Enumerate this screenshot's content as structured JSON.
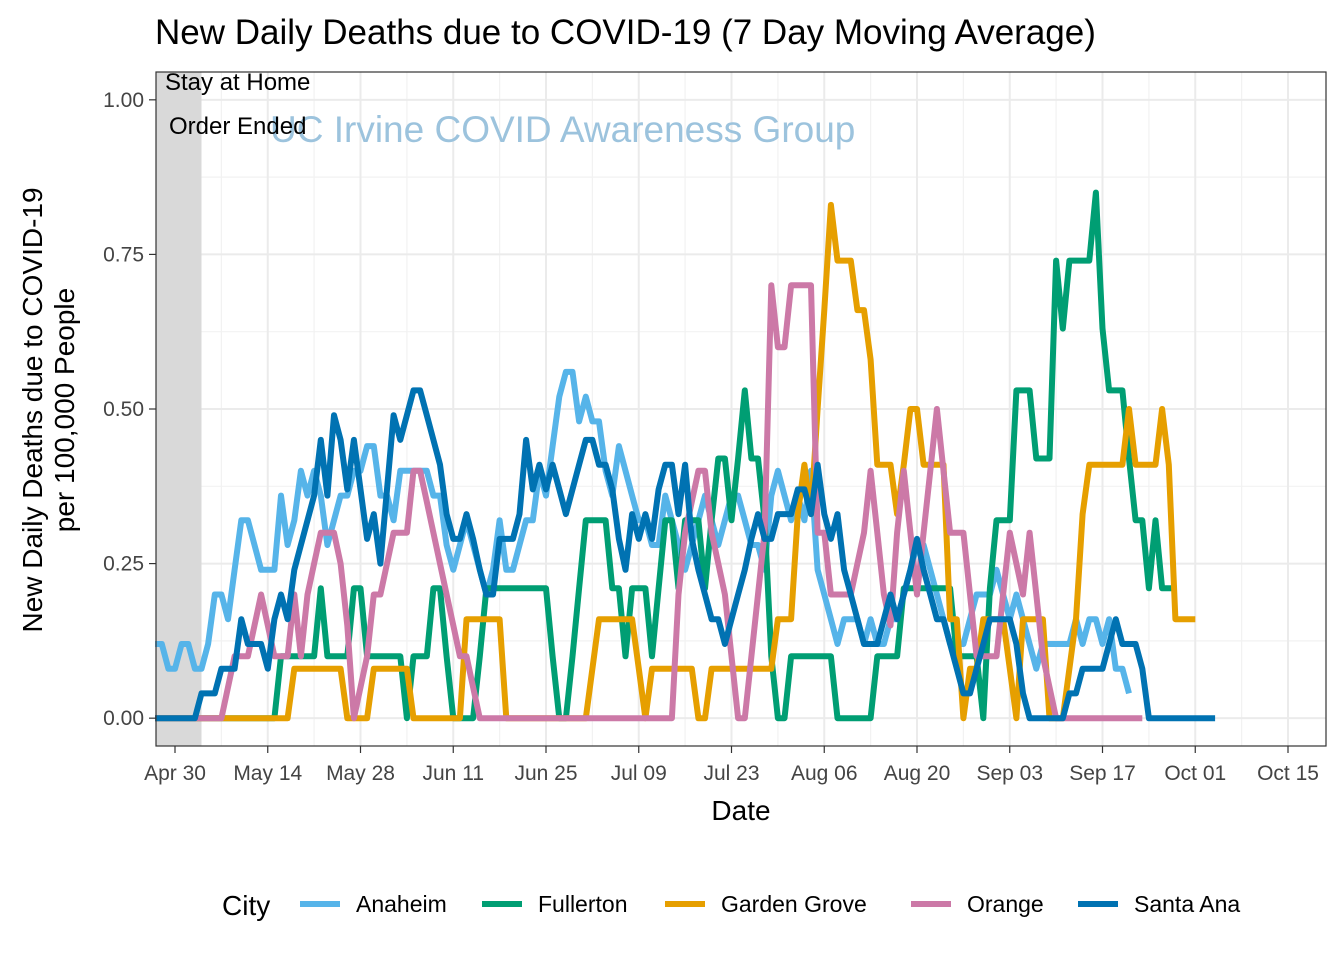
{
  "chart_data": {
    "type": "line",
    "title": "New Daily Deaths due to COVID-19  (7 Day Moving Average)",
    "xlabel": "Date",
    "ylabel_lines": [
      "New Daily Deaths due to COVID-19",
      "per 100,000 People"
    ],
    "x_tick_labels": [
      "Apr 30",
      "May 14",
      "May 28",
      "Jun 11",
      "Jun 25",
      "Jul 09",
      "Jul 23",
      "Aug 06",
      "Aug 20",
      "Sep 03",
      "Sep 17",
      "Oct 01",
      "Oct 15"
    ],
    "y_tick_labels": [
      "0.00",
      "0.25",
      "0.50",
      "0.75",
      "1.00"
    ],
    "ylim": [
      -0.045,
      1.045
    ],
    "grid": true,
    "legend_position": "bottom",
    "legend_title": "City",
    "start_date": "Apr 27",
    "shaded_region": {
      "from": "Apr 27",
      "to": "May 4"
    },
    "annotations": {
      "shade_label_line1": "Stay at Home",
      "shade_label_line2": "Order Ended",
      "watermark": "UC Irvine COVID Awareness Group"
    },
    "series": [
      {
        "name": "Anaheim",
        "color": "#56B4E9",
        "values": [
          0.12,
          0.12,
          0.08,
          0.08,
          0.12,
          0.12,
          0.08,
          0.08,
          0.12,
          0.2,
          0.2,
          0.16,
          0.24,
          0.32,
          0.32,
          0.28,
          0.24,
          0.24,
          0.24,
          0.36,
          0.28,
          0.32,
          0.4,
          0.36,
          0.4,
          0.36,
          0.28,
          0.32,
          0.36,
          0.36,
          0.4,
          0.4,
          0.44,
          0.44,
          0.36,
          0.36,
          0.32,
          0.4,
          0.4,
          0.4,
          0.4,
          0.4,
          0.36,
          0.36,
          0.28,
          0.24,
          0.28,
          0.32,
          0.28,
          0.24,
          0.2,
          0.24,
          0.32,
          0.24,
          0.24,
          0.28,
          0.32,
          0.32,
          0.4,
          0.36,
          0.44,
          0.52,
          0.56,
          0.56,
          0.48,
          0.52,
          0.48,
          0.48,
          0.4,
          0.36,
          0.44,
          0.4,
          0.36,
          0.32,
          0.32,
          0.28,
          0.28,
          0.36,
          0.32,
          0.28,
          0.24,
          0.28,
          0.32,
          0.36,
          0.32,
          0.28,
          0.32,
          0.36,
          0.36,
          0.32,
          0.28,
          0.28,
          0.24,
          0.36,
          0.4,
          0.36,
          0.32,
          0.36,
          0.32,
          0.4,
          0.24,
          0.2,
          0.16,
          0.12,
          0.16,
          0.16,
          0.16,
          0.12,
          0.16,
          0.12,
          0.12,
          0.16,
          0.16,
          0.2,
          0.24,
          0.28,
          0.28,
          0.24,
          0.2,
          0.16,
          0.12,
          0.12,
          0.12,
          0.16,
          0.2,
          0.2,
          0.2,
          0.24,
          0.2,
          0.16,
          0.2,
          0.16,
          0.12,
          0.08,
          0.12,
          0.12,
          0.12,
          0.12,
          0.12,
          0.16,
          0.12,
          0.16,
          0.16,
          0.12,
          0.16,
          0.08,
          0.08,
          0.04
        ]
      },
      {
        "name": "Fullerton",
        "color": "#009E73",
        "values": [
          0,
          0,
          0,
          0,
          0,
          0,
          0,
          0,
          0,
          0,
          0,
          0,
          0,
          0,
          0,
          0,
          0,
          0,
          0,
          0.1,
          0.1,
          0.1,
          0.1,
          0.1,
          0.1,
          0.21,
          0.1,
          0.1,
          0.1,
          0.1,
          0.21,
          0.21,
          0.1,
          0.1,
          0.1,
          0.1,
          0.1,
          0.1,
          0,
          0.1,
          0.1,
          0.1,
          0.21,
          0.21,
          0.1,
          0,
          0,
          0,
          0,
          0.1,
          0.21,
          0.21,
          0.21,
          0.21,
          0.21,
          0.21,
          0.21,
          0.21,
          0.21,
          0.21,
          0.1,
          0,
          0,
          0.1,
          0.21,
          0.32,
          0.32,
          0.32,
          0.32,
          0.21,
          0.21,
          0.1,
          0.21,
          0.21,
          0.21,
          0.1,
          0.21,
          0.32,
          0.32,
          0.21,
          0.32,
          0.32,
          0.32,
          0.21,
          0.32,
          0.42,
          0.42,
          0.32,
          0.42,
          0.53,
          0.42,
          0.42,
          0.32,
          0.1,
          0,
          0,
          0.1,
          0.1,
          0.1,
          0.1,
          0.1,
          0.1,
          0.1,
          0,
          0,
          0,
          0,
          0,
          0,
          0.1,
          0.1,
          0.1,
          0.1,
          0.21,
          0.21,
          0.21,
          0.21,
          0.21,
          0.21,
          0.21,
          0.21,
          0.1,
          0.1,
          0.1,
          0.1,
          0,
          0.21,
          0.32,
          0.32,
          0.32,
          0.53,
          0.53,
          0.53,
          0.42,
          0.42,
          0.42,
          0.74,
          0.63,
          0.74,
          0.74,
          0.74,
          0.74,
          0.85,
          0.63,
          0.53,
          0.53,
          0.53,
          0.42,
          0.32,
          0.32,
          0.21,
          0.32,
          0.21,
          0.21,
          0.21
        ]
      },
      {
        "name": "Garden Grove",
        "color": "#E69F00",
        "values": [
          0,
          0,
          0,
          0,
          0,
          0,
          0,
          0,
          0,
          0,
          0,
          0,
          0,
          0,
          0,
          0,
          0,
          0,
          0,
          0,
          0,
          0.08,
          0.08,
          0.08,
          0.08,
          0.08,
          0.08,
          0.08,
          0.08,
          0,
          0,
          0,
          0,
          0.08,
          0.08,
          0.08,
          0.08,
          0.08,
          0.08,
          0,
          0,
          0,
          0,
          0,
          0,
          0,
          0,
          0.16,
          0.16,
          0.16,
          0.16,
          0.16,
          0.16,
          0,
          0,
          0,
          0,
          0,
          0,
          0,
          0,
          0,
          0,
          0,
          0,
          0,
          0.08,
          0.16,
          0.16,
          0.16,
          0.16,
          0.16,
          0.16,
          0.08,
          0,
          0.08,
          0.08,
          0.08,
          0.08,
          0.08,
          0.08,
          0.08,
          0,
          0,
          0.08,
          0.08,
          0.08,
          0.08,
          0.08,
          0.08,
          0.08,
          0.08,
          0.08,
          0.08,
          0.16,
          0.16,
          0.16,
          0.33,
          0.41,
          0.33,
          0.5,
          0.66,
          0.83,
          0.74,
          0.74,
          0.74,
          0.66,
          0.66,
          0.58,
          0.41,
          0.41,
          0.41,
          0.33,
          0.41,
          0.5,
          0.5,
          0.41,
          0.41,
          0.41,
          0.41,
          0.16,
          0.16,
          0,
          0.08,
          0.08,
          0.16,
          0.16,
          0.16,
          0.16,
          0.08,
          0,
          0.16,
          0.16,
          0.16,
          0.16,
          0,
          0,
          0,
          0.08,
          0.16,
          0.33,
          0.41,
          0.41,
          0.41,
          0.41,
          0.41,
          0.41,
          0.5,
          0.41,
          0.41,
          0.41,
          0.41,
          0.5,
          0.41,
          0.16,
          0.16,
          0.16,
          0.16
        ]
      },
      {
        "name": "Orange",
        "color": "#CC79A7",
        "values": [
          0,
          0,
          0,
          0,
          0,
          0,
          0,
          0,
          0,
          0,
          0,
          0.05,
          0.1,
          0.1,
          0.1,
          0.15,
          0.2,
          0.15,
          0.1,
          0.1,
          0.1,
          0.2,
          0.1,
          0.2,
          0.25,
          0.3,
          0.3,
          0.3,
          0.25,
          0.15,
          0,
          0.05,
          0.1,
          0.2,
          0.2,
          0.25,
          0.3,
          0.3,
          0.3,
          0.4,
          0.4,
          0.35,
          0.3,
          0.25,
          0.2,
          0.15,
          0.1,
          0.1,
          0.05,
          0,
          0,
          0,
          0,
          0,
          0,
          0,
          0,
          0,
          0,
          0,
          0,
          0,
          0,
          0,
          0,
          0,
          0,
          0,
          0,
          0,
          0,
          0,
          0,
          0,
          0,
          0,
          0,
          0,
          0,
          0.2,
          0.3,
          0.35,
          0.4,
          0.4,
          0.3,
          0.25,
          0.2,
          0.1,
          0,
          0,
          0.1,
          0.2,
          0.3,
          0.7,
          0.6,
          0.6,
          0.7,
          0.7,
          0.7,
          0.7,
          0.3,
          0.3,
          0.2,
          0.2,
          0.2,
          0.2,
          0.25,
          0.3,
          0.4,
          0.3,
          0.2,
          0.15,
          0.3,
          0.4,
          0.3,
          0.2,
          0.3,
          0.4,
          0.5,
          0.4,
          0.3,
          0.3,
          0.3,
          0.2,
          0.1,
          0.1,
          0.1,
          0.1,
          0.2,
          0.3,
          0.25,
          0.2,
          0.3,
          0.2,
          0.1,
          0.05,
          0,
          0,
          0,
          0,
          0,
          0,
          0,
          0,
          0,
          0,
          0,
          0,
          0,
          0
        ]
      },
      {
        "name": "Santa Ana",
        "color": "#0072B2",
        "values": [
          0,
          0,
          0,
          0,
          0,
          0,
          0,
          0.04,
          0.04,
          0.04,
          0.08,
          0.08,
          0.08,
          0.16,
          0.12,
          0.12,
          0.12,
          0.08,
          0.16,
          0.2,
          0.16,
          0.24,
          0.28,
          0.32,
          0.36,
          0.45,
          0.36,
          0.49,
          0.45,
          0.37,
          0.45,
          0.37,
          0.29,
          0.33,
          0.25,
          0.37,
          0.49,
          0.45,
          0.49,
          0.53,
          0.53,
          0.49,
          0.45,
          0.41,
          0.33,
          0.29,
          0.29,
          0.33,
          0.29,
          0.24,
          0.2,
          0.2,
          0.29,
          0.29,
          0.29,
          0.33,
          0.45,
          0.37,
          0.41,
          0.37,
          0.41,
          0.37,
          0.33,
          0.37,
          0.41,
          0.45,
          0.45,
          0.41,
          0.41,
          0.37,
          0.29,
          0.24,
          0.33,
          0.29,
          0.33,
          0.29,
          0.37,
          0.41,
          0.41,
          0.33,
          0.41,
          0.29,
          0.24,
          0.2,
          0.16,
          0.16,
          0.12,
          0.16,
          0.2,
          0.24,
          0.29,
          0.33,
          0.29,
          0.29,
          0.33,
          0.33,
          0.33,
          0.37,
          0.37,
          0.33,
          0.41,
          0.33,
          0.29,
          0.33,
          0.24,
          0.2,
          0.16,
          0.12,
          0.12,
          0.12,
          0.16,
          0.2,
          0.16,
          0.2,
          0.24,
          0.29,
          0.24,
          0.2,
          0.16,
          0.16,
          0.12,
          0.08,
          0.04,
          0.04,
          0.08,
          0.12,
          0.16,
          0.16,
          0.16,
          0.16,
          0.12,
          0.04,
          0,
          0,
          0,
          0,
          0,
          0,
          0.04,
          0.04,
          0.08,
          0.08,
          0.08,
          0.08,
          0.12,
          0.16,
          0.12,
          0.12,
          0.12,
          0.08,
          0,
          0,
          0,
          0,
          0,
          0,
          0,
          0,
          0,
          0,
          0
        ]
      }
    ]
  }
}
